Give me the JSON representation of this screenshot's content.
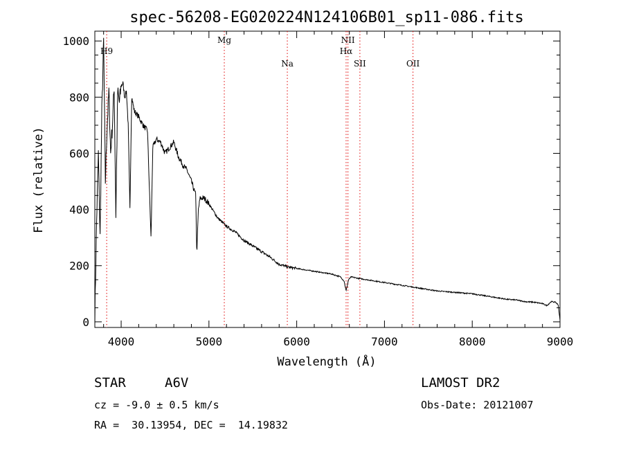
{
  "chart_data": {
    "type": "line",
    "title": "spec-56208-EG020224N124106B01_sp11-086.fits",
    "xlabel": "Wavelength (Å)",
    "ylabel": "Flux (relative)",
    "xlim": [
      3700,
      9000
    ],
    "ylim": [
      -20,
      1035
    ],
    "x_ticks": [
      4000,
      5000,
      6000,
      7000,
      8000,
      9000
    ],
    "x_tick_labels": [
      "4000",
      "5000",
      "6000",
      "7000",
      "8000",
      "9000"
    ],
    "y_ticks": [
      0,
      200,
      400,
      600,
      800,
      1000
    ],
    "y_tick_labels": [
      "0",
      "200",
      "400",
      "600",
      "800",
      "1000"
    ],
    "grid": false,
    "series": [
      {
        "x": [
          3700,
          3720,
          3740,
          3760,
          3780,
          3800,
          3820,
          3840,
          3860,
          3880,
          3900,
          3920,
          3940,
          3960,
          3980,
          4000,
          4020,
          4040,
          4060,
          4080,
          4100,
          4120,
          4150,
          4200,
          4250,
          4300,
          4340,
          4360,
          4400,
          4450,
          4500,
          4550,
          4600,
          4650,
          4700,
          4750,
          4800,
          4850,
          4861,
          4880,
          4900,
          4950,
          5000,
          5100,
          5200,
          5300,
          5400,
          5500,
          5600,
          5700,
          5800,
          5900,
          6000,
          6100,
          6200,
          6300,
          6400,
          6500,
          6540,
          6563,
          6590,
          6620,
          6700,
          6800,
          6900,
          7000,
          7200,
          7400,
          7600,
          7800,
          8000,
          8200,
          8400,
          8500,
          8600,
          8700,
          8800,
          8850,
          8900,
          8950,
          8980,
          9000
        ],
        "y": [
          20,
          350,
          600,
          300,
          750,
          1000,
          500,
          700,
          820,
          600,
          700,
          840,
          380,
          820,
          780,
          840,
          850,
          800,
          820,
          700,
          400,
          800,
          750,
          730,
          700,
          680,
          300,
          620,
          650,
          640,
          600,
          620,
          640,
          590,
          560,
          540,
          500,
          450,
          240,
          400,
          440,
          440,
          420,
          370,
          340,
          320,
          290,
          270,
          250,
          230,
          205,
          195,
          190,
          185,
          180,
          175,
          170,
          160,
          145,
          110,
          150,
          160,
          155,
          150,
          145,
          140,
          130,
          120,
          110,
          105,
          100,
          90,
          80,
          78,
          72,
          70,
          65,
          58,
          72,
          70,
          60,
          5
        ]
      }
    ],
    "lines": [
      {
        "name": "H9",
        "x": 3835
      },
      {
        "name": "Mg",
        "x": 5175
      },
      {
        "name": "Na",
        "x": 5893
      },
      {
        "name": "NII",
        "x": 6584
      },
      {
        "name": "Hα",
        "x": 6563
      },
      {
        "name": "SII",
        "x": 6720
      },
      {
        "name": "OII",
        "x": 7325
      }
    ]
  },
  "info": {
    "object_type": "STAR",
    "subclass": "A6V",
    "survey": "LAMOST DR2",
    "cz": "cz = -9.0 ± 0.5 km/s",
    "obs_date": "Obs-Date: 20121007",
    "coords": "RA =  30.13954, DEC =  14.19832"
  }
}
